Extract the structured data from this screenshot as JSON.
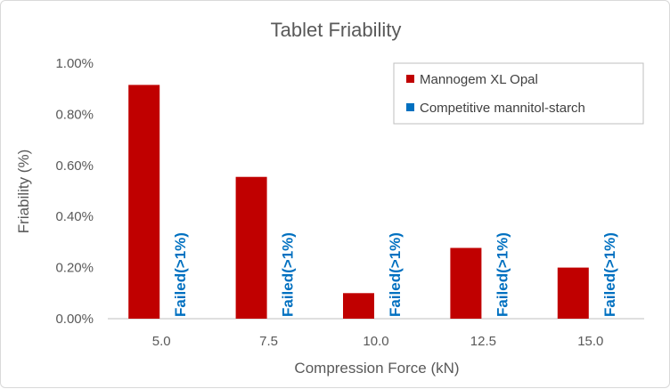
{
  "chart_data": {
    "type": "bar",
    "title": "Tablet Friability",
    "xlabel": "Compression Force (kN)",
    "ylabel": "Friability (%)",
    "categories": [
      "5.0",
      "7.5",
      "10.0",
      "12.5",
      "15.0"
    ],
    "y_ticks": [
      "0.00%",
      "0.20%",
      "0.40%",
      "0.60%",
      "0.80%",
      "1.00%"
    ],
    "ylim": [
      0,
      1.0
    ],
    "grid": false,
    "legend_position": "top-right",
    "series": [
      {
        "name": "Mannogem XL Opal",
        "values": [
          0.915,
          0.555,
          0.1,
          0.277,
          0.2
        ],
        "color": "#c00000"
      },
      {
        "name": "Competitive mannitol-starch",
        "values": [
          null,
          null,
          null,
          null,
          null
        ],
        "color": "#0070c0"
      }
    ],
    "annotations": [
      "Failed(>1%)",
      "Failed(>1%)",
      "Failed(>1%)",
      "Failed(>1%)",
      "Failed(>1%)"
    ]
  }
}
